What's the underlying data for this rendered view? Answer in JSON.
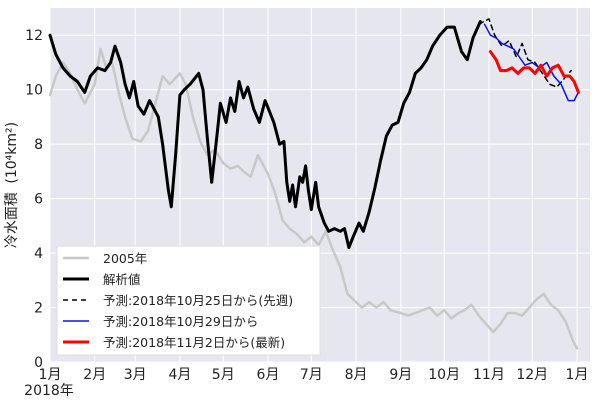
{
  "chart_data": {
    "type": "line",
    "ylabel": "冷水面積 (10⁴km²)",
    "ylabel_text": "冷水面積",
    "ylabel_unit": "(10⁴km²)",
    "year_label": "2018年",
    "xlim": [
      "2018-01-01",
      "2019-01-10"
    ],
    "ylim": [
      0,
      13
    ],
    "grid": true,
    "legend_position": "lower-left",
    "colors": {
      "plot_bg": "#e6e6ef",
      "grid": "#ffffff"
    },
    "x_ticks": [
      {
        "label": "1月",
        "date": "2018-01-01"
      },
      {
        "label": "2月",
        "date": "2018-02-01"
      },
      {
        "label": "3月",
        "date": "2018-03-01"
      },
      {
        "label": "4月",
        "date": "2018-04-01"
      },
      {
        "label": "5月",
        "date": "2018-05-01"
      },
      {
        "label": "6月",
        "date": "2018-06-01"
      },
      {
        "label": "7月",
        "date": "2018-07-01"
      },
      {
        "label": "8月",
        "date": "2018-08-01"
      },
      {
        "label": "9月",
        "date": "2018-09-01"
      },
      {
        "label": "10月",
        "date": "2018-10-01"
      },
      {
        "label": "11月",
        "date": "2018-11-01"
      },
      {
        "label": "12月",
        "date": "2018-12-01"
      },
      {
        "label": "1月",
        "date": "2019-01-01"
      }
    ],
    "y_ticks": [
      "0",
      "2",
      "4",
      "6",
      "8",
      "10",
      "12"
    ],
    "series": [
      {
        "name": "2005年",
        "color": "#c8c8c8",
        "width": 2.5,
        "dash": "",
        "points": [
          [
            "2018-01-01",
            9.8
          ],
          [
            "2018-01-05",
            10.5
          ],
          [
            "2018-01-10",
            11
          ],
          [
            "2018-01-15",
            10.6
          ],
          [
            "2018-01-20",
            10
          ],
          [
            "2018-01-25",
            9.5
          ],
          [
            "2018-02-01",
            10.2
          ],
          [
            "2018-02-05",
            11.5
          ],
          [
            "2018-02-09",
            10.8
          ],
          [
            "2018-02-13",
            11
          ],
          [
            "2018-02-18",
            9.8
          ],
          [
            "2018-02-22",
            9
          ],
          [
            "2018-02-27",
            8.2
          ],
          [
            "2018-03-05",
            8.1
          ],
          [
            "2018-03-10",
            8.5
          ],
          [
            "2018-03-15",
            9.5
          ],
          [
            "2018-03-20",
            10.5
          ],
          [
            "2018-03-25",
            10.2
          ],
          [
            "2018-04-01",
            10.6
          ],
          [
            "2018-04-05",
            10.2
          ],
          [
            "2018-04-10",
            9
          ],
          [
            "2018-04-15",
            8.1
          ],
          [
            "2018-04-20",
            7.6
          ],
          [
            "2018-04-25",
            7.8
          ],
          [
            "2018-05-01",
            7.3
          ],
          [
            "2018-05-06",
            7.1
          ],
          [
            "2018-05-11",
            7.2
          ],
          [
            "2018-05-15",
            7
          ],
          [
            "2018-05-20",
            6.8
          ],
          [
            "2018-05-25",
            7.6
          ],
          [
            "2018-06-01",
            6.9
          ],
          [
            "2018-06-06",
            6.2
          ],
          [
            "2018-06-11",
            5.2
          ],
          [
            "2018-06-16",
            4.9
          ],
          [
            "2018-06-21",
            4.7
          ],
          [
            "2018-06-26",
            4.4
          ],
          [
            "2018-07-01",
            4.6
          ],
          [
            "2018-07-06",
            4.3
          ],
          [
            "2018-07-11",
            4.8
          ],
          [
            "2018-07-16",
            4.1
          ],
          [
            "2018-07-21",
            3.5
          ],
          [
            "2018-07-26",
            2.5
          ],
          [
            "2018-08-01",
            2.2
          ],
          [
            "2018-08-05",
            2
          ],
          [
            "2018-08-10",
            2.2
          ],
          [
            "2018-08-15",
            2
          ],
          [
            "2018-08-20",
            2.2
          ],
          [
            "2018-08-25",
            1.9
          ],
          [
            "2018-09-01",
            1.8
          ],
          [
            "2018-09-06",
            1.7
          ],
          [
            "2018-09-11",
            1.8
          ],
          [
            "2018-09-16",
            1.9
          ],
          [
            "2018-09-21",
            2
          ],
          [
            "2018-09-26",
            1.7
          ],
          [
            "2018-10-01",
            1.9
          ],
          [
            "2018-10-06",
            1.6
          ],
          [
            "2018-10-11",
            1.8
          ],
          [
            "2018-10-15",
            1.9
          ],
          [
            "2018-10-20",
            2.1
          ],
          [
            "2018-10-25",
            1.7
          ],
          [
            "2018-10-30",
            1.4
          ],
          [
            "2018-11-04",
            1.1
          ],
          [
            "2018-11-09",
            1.4
          ],
          [
            "2018-11-14",
            1.8
          ],
          [
            "2018-11-19",
            1.8
          ],
          [
            "2018-11-24",
            1.7
          ],
          [
            "2018-11-29",
            2
          ],
          [
            "2018-12-04",
            2.3
          ],
          [
            "2018-12-09",
            2.5
          ],
          [
            "2018-12-14",
            2.1
          ],
          [
            "2018-12-19",
            1.9
          ],
          [
            "2018-12-24",
            1.5
          ],
          [
            "2018-12-29",
            0.8
          ],
          [
            "2019-01-01",
            0.5
          ]
        ]
      },
      {
        "name": "解析値",
        "color": "#000000",
        "width": 3,
        "dash": "",
        "points": [
          [
            "2018-01-01",
            12
          ],
          [
            "2018-01-05",
            11.3
          ],
          [
            "2018-01-10",
            10.8
          ],
          [
            "2018-01-15",
            10.5
          ],
          [
            "2018-01-20",
            10.3
          ],
          [
            "2018-01-25",
            9.9
          ],
          [
            "2018-01-29",
            10.5
          ],
          [
            "2018-02-03",
            10.8
          ],
          [
            "2018-02-08",
            10.7
          ],
          [
            "2018-02-12",
            11
          ],
          [
            "2018-02-15",
            11.6
          ],
          [
            "2018-02-19",
            11
          ],
          [
            "2018-02-22",
            10.2
          ],
          [
            "2018-02-25",
            9.7
          ],
          [
            "2018-02-28",
            10.3
          ],
          [
            "2018-03-03",
            9.4
          ],
          [
            "2018-03-07",
            9.1
          ],
          [
            "2018-03-11",
            9.6
          ],
          [
            "2018-03-14",
            9.3
          ],
          [
            "2018-03-17",
            9
          ],
          [
            "2018-03-20",
            8
          ],
          [
            "2018-03-24",
            6.3
          ],
          [
            "2018-03-26",
            5.7
          ],
          [
            "2018-03-29",
            7.6
          ],
          [
            "2018-04-01",
            9.8
          ],
          [
            "2018-04-04",
            10
          ],
          [
            "2018-04-08",
            10.2
          ],
          [
            "2018-04-11",
            10.4
          ],
          [
            "2018-04-14",
            10.6
          ],
          [
            "2018-04-17",
            10
          ],
          [
            "2018-04-20",
            8.2
          ],
          [
            "2018-04-23",
            6.6
          ],
          [
            "2018-04-26",
            8
          ],
          [
            "2018-04-29",
            9.5
          ],
          [
            "2018-05-03",
            8.8
          ],
          [
            "2018-05-06",
            9.7
          ],
          [
            "2018-05-09",
            9.2
          ],
          [
            "2018-05-12",
            10.3
          ],
          [
            "2018-05-15",
            9.7
          ],
          [
            "2018-05-18",
            10.1
          ],
          [
            "2018-05-22",
            9.3
          ],
          [
            "2018-05-26",
            8.8
          ],
          [
            "2018-05-30",
            9.6
          ],
          [
            "2018-06-02",
            9.2
          ],
          [
            "2018-06-05",
            8.8
          ],
          [
            "2018-06-09",
            8
          ],
          [
            "2018-06-12",
            8.1
          ],
          [
            "2018-06-14",
            6.6
          ],
          [
            "2018-06-16",
            5.9
          ],
          [
            "2018-06-18",
            6.5
          ],
          [
            "2018-06-20",
            5.7
          ],
          [
            "2018-06-23",
            6.8
          ],
          [
            "2018-06-25",
            6.6
          ],
          [
            "2018-06-27",
            7.2
          ],
          [
            "2018-06-29",
            6.3
          ],
          [
            "2018-07-01",
            5.6
          ],
          [
            "2018-07-04",
            6.6
          ],
          [
            "2018-07-06",
            5.7
          ],
          [
            "2018-07-10",
            5.1
          ],
          [
            "2018-07-13",
            4.8
          ],
          [
            "2018-07-17",
            4.9
          ],
          [
            "2018-07-21",
            4.8
          ],
          [
            "2018-07-24",
            4.9
          ],
          [
            "2018-07-27",
            4.2
          ],
          [
            "2018-07-30",
            4.6
          ],
          [
            "2018-08-03",
            5.1
          ],
          [
            "2018-08-06",
            4.8
          ],
          [
            "2018-08-10",
            5.5
          ],
          [
            "2018-08-14",
            6.4
          ],
          [
            "2018-08-18",
            7.4
          ],
          [
            "2018-08-22",
            8.3
          ],
          [
            "2018-08-26",
            8.7
          ],
          [
            "2018-08-30",
            8.8
          ],
          [
            "2018-09-03",
            9.5
          ],
          [
            "2018-09-07",
            9.9
          ],
          [
            "2018-09-11",
            10.6
          ],
          [
            "2018-09-15",
            10.8
          ],
          [
            "2018-09-19",
            11.1
          ],
          [
            "2018-09-23",
            11.6
          ],
          [
            "2018-09-28",
            12
          ],
          [
            "2018-10-03",
            12.3
          ],
          [
            "2018-10-08",
            12.3
          ],
          [
            "2018-10-13",
            11.4
          ],
          [
            "2018-10-17",
            11.1
          ],
          [
            "2018-10-21",
            11.9
          ],
          [
            "2018-10-26",
            12.5
          ]
        ]
      },
      {
        "name": "予測:2018年10月25日から(先週)",
        "color": "#000000",
        "width": 1.5,
        "dash": "5,4",
        "points": [
          [
            "2018-10-25",
            12.4
          ],
          [
            "2018-11-01",
            12.6
          ],
          [
            "2018-11-05",
            12
          ],
          [
            "2018-11-10",
            11.6
          ],
          [
            "2018-11-15",
            11.8
          ],
          [
            "2018-11-20",
            11.2
          ],
          [
            "2018-11-24",
            11.7
          ],
          [
            "2018-11-28",
            11.1
          ],
          [
            "2018-12-03",
            11
          ],
          [
            "2018-12-08",
            10.6
          ],
          [
            "2018-12-13",
            10.2
          ],
          [
            "2018-12-18",
            10.1
          ],
          [
            "2018-12-23",
            10.4
          ],
          [
            "2018-12-28",
            10.7
          ]
        ]
      },
      {
        "name": "予測:2018年10月29日から",
        "color": "#0a14e6",
        "width": 1.5,
        "dash": "",
        "points": [
          [
            "2018-10-29",
            12.4
          ],
          [
            "2018-11-02",
            12
          ],
          [
            "2018-11-06",
            11.9
          ],
          [
            "2018-11-10",
            11.7
          ],
          [
            "2018-11-14",
            11.6
          ],
          [
            "2018-11-18",
            11.5
          ],
          [
            "2018-11-22",
            11.2
          ],
          [
            "2018-11-26",
            10.9
          ],
          [
            "2018-12-01",
            11
          ],
          [
            "2018-12-06",
            10.8
          ],
          [
            "2018-12-11",
            11
          ],
          [
            "2018-12-16",
            10.5
          ],
          [
            "2018-12-21",
            10.2
          ],
          [
            "2018-12-26",
            9.6
          ],
          [
            "2018-12-30",
            9.6
          ],
          [
            "2019-01-02",
            9.9
          ]
        ]
      },
      {
        "name": "予測:2018年11月2日から(最新)",
        "color": "#ff0000",
        "width": 3,
        "dash": "",
        "points": [
          [
            "2018-11-02",
            11.4
          ],
          [
            "2018-11-06",
            11.1
          ],
          [
            "2018-11-09",
            10.7
          ],
          [
            "2018-11-13",
            10.7
          ],
          [
            "2018-11-17",
            10.8
          ],
          [
            "2018-11-21",
            10.6
          ],
          [
            "2018-11-25",
            10.8
          ],
          [
            "2018-11-29",
            10.8
          ],
          [
            "2018-12-03",
            10.6
          ],
          [
            "2018-12-07",
            10.9
          ],
          [
            "2018-12-11",
            10.5
          ],
          [
            "2018-12-15",
            10.8
          ],
          [
            "2018-12-19",
            10.9
          ],
          [
            "2018-12-23",
            10.5
          ],
          [
            "2018-12-27",
            10.5
          ],
          [
            "2018-12-30",
            10.3
          ],
          [
            "2019-01-02",
            9.9
          ]
        ]
      }
    ]
  }
}
